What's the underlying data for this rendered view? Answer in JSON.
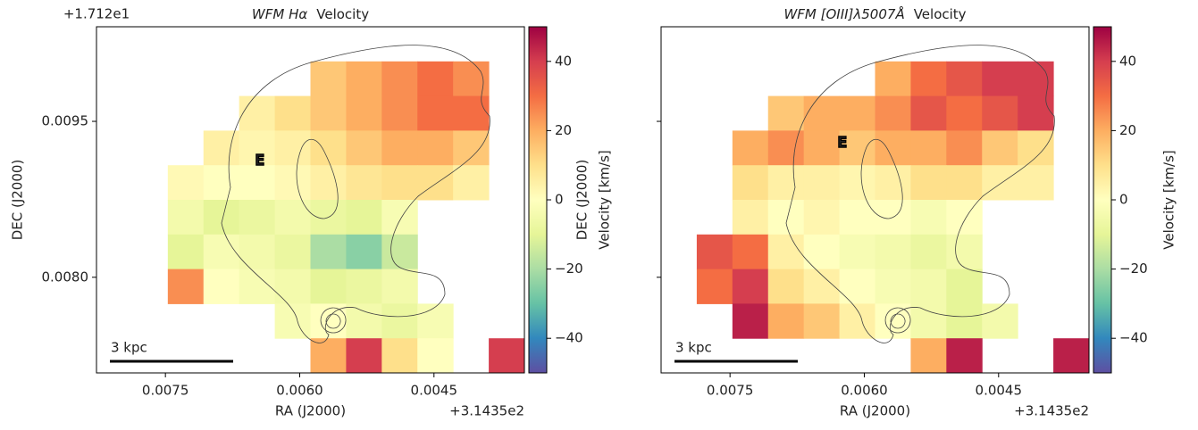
{
  "chart_data": [
    {
      "type": "heatmap",
      "title": {
        "math": "WFM Hα",
        "text": "Velocity"
      },
      "x_label": "RA (J2000)",
      "y_label": "DEC (J2000)",
      "x_offset": "+3.1435e2",
      "y_offset": "+1.712e1",
      "xlim": [
        0.00827,
        0.00349
      ],
      "ylim": [
        0.00708,
        0.01041
      ],
      "xticks": [
        {
          "value": 0.0075,
          "label": "0.0075"
        },
        {
          "value": 0.006,
          "label": "0.0060"
        },
        {
          "value": 0.0045,
          "label": "0.0045"
        }
      ],
      "yticks": [
        {
          "value": 0.0095,
          "label": "0.0095"
        },
        {
          "value": 0.008,
          "label": "0.0080"
        }
      ],
      "ytick_labels": true,
      "colorbar": {
        "label": "Velocity [km/s]",
        "lim": [
          -50,
          50
        ],
        "ticks": [
          {
            "value": -40,
            "label": "−40"
          },
          {
            "value": -20,
            "label": "−20"
          },
          0,
          20,
          40
        ]
      },
      "scalebar": "3 kpc",
      "marker": "E",
      "grid": [
        [
          null,
          null,
          null,
          null,
          null,
          null,
          null,
          null,
          null,
          null,
          null,
          null
        ],
        [
          null,
          null,
          null,
          null,
          null,
          null,
          15,
          20,
          25,
          30,
          25,
          null
        ],
        [
          null,
          null,
          null,
          null,
          5,
          10,
          15,
          20,
          25,
          30,
          30,
          null
        ],
        [
          null,
          null,
          null,
          5,
          3,
          5,
          10,
          15,
          20,
          20,
          15,
          null
        ],
        [
          null,
          null,
          2,
          0,
          0,
          2,
          5,
          8,
          10,
          10,
          5,
          null
        ],
        [
          null,
          null,
          -5,
          -10,
          -8,
          -5,
          -8,
          -10,
          -3,
          null,
          null,
          null
        ],
        [
          null,
          null,
          -10,
          -3,
          -5,
          -8,
          -20,
          -25,
          -15,
          null,
          null,
          null
        ],
        [
          null,
          null,
          25,
          0,
          -3,
          -5,
          -10,
          -8,
          -5,
          null,
          null,
          null
        ],
        [
          null,
          null,
          null,
          null,
          null,
          -3,
          0,
          -5,
          -8,
          -3,
          null,
          null
        ],
        [
          null,
          null,
          null,
          null,
          null,
          null,
          20,
          40,
          10,
          0,
          null,
          40
        ]
      ]
    },
    {
      "type": "heatmap",
      "title": {
        "math": "WFM [OIII]λ5007Å",
        "text": "Velocity"
      },
      "x_label": "RA (J2000)",
      "y_label": "DEC (J2000)",
      "x_offset": "+3.1435e2",
      "xlim": [
        0.00827,
        0.00349
      ],
      "ylim": [
        0.00708,
        0.01041
      ],
      "xticks": [
        {
          "value": 0.0075,
          "label": "0.0075"
        },
        {
          "value": 0.006,
          "label": "0.0060"
        },
        {
          "value": 0.0045,
          "label": "0.0045"
        }
      ],
      "yticks": [
        0.0095,
        0.008
      ],
      "ytick_labels": false,
      "colorbar": {
        "label": "Velocity [km/s]",
        "lim": [
          -50,
          50
        ],
        "ticks": [
          {
            "value": -40,
            "label": "−40"
          },
          {
            "value": -20,
            "label": "−20"
          },
          0,
          20,
          40
        ]
      },
      "scalebar": "3 kpc",
      "marker": "E",
      "grid": [
        [
          null,
          null,
          null,
          null,
          null,
          null,
          null,
          null,
          null,
          null,
          null,
          null
        ],
        [
          null,
          null,
          null,
          null,
          null,
          null,
          20,
          30,
          35,
          40,
          40,
          null
        ],
        [
          null,
          null,
          null,
          15,
          20,
          20,
          25,
          35,
          30,
          35,
          40,
          null
        ],
        [
          null,
          null,
          20,
          25,
          20,
          15,
          20,
          20,
          25,
          15,
          10,
          null
        ],
        [
          null,
          null,
          10,
          5,
          5,
          3,
          5,
          10,
          10,
          5,
          5,
          null
        ],
        [
          null,
          null,
          5,
          0,
          3,
          0,
          0,
          -3,
          0,
          null,
          null,
          null
        ],
        [
          null,
          35,
          30,
          5,
          0,
          -3,
          -5,
          -8,
          -5,
          null,
          null,
          null
        ],
        [
          null,
          30,
          40,
          10,
          5,
          0,
          -3,
          -5,
          -10,
          null,
          null,
          null
        ],
        [
          null,
          null,
          45,
          20,
          15,
          5,
          0,
          -5,
          -10,
          -5,
          null,
          null
        ],
        [
          null,
          null,
          null,
          null,
          null,
          null,
          null,
          20,
          45,
          null,
          null,
          45
        ]
      ]
    }
  ]
}
